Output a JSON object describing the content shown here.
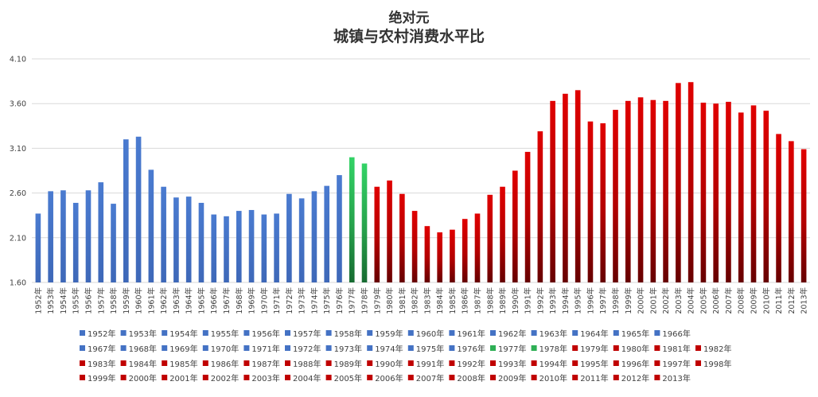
{
  "chart_data": {
    "type": "bar",
    "title": "绝对元",
    "subtitle": "城镇与农村消费水平比",
    "xlabel": "",
    "ylabel": "",
    "ylim": [
      1.6,
      4.1
    ],
    "yticks": [
      "1.60",
      "2.10",
      "2.60",
      "3.10",
      "3.60",
      "4.10"
    ],
    "grid": true,
    "legend_position": "bottom",
    "colors": {
      "1952-1976": "#4472C4",
      "1977-1978": "#2EAF55",
      "1979-2013": "#C00000"
    },
    "categories": [
      "1952年",
      "1953年",
      "1954年",
      "1955年",
      "1956年",
      "1957年",
      "1958年",
      "1959年",
      "1960年",
      "1961年",
      "1962年",
      "1963年",
      "1964年",
      "1965年",
      "1966年",
      "1967年",
      "1968年",
      "1969年",
      "1970年",
      "1971年",
      "1972年",
      "1973年",
      "1974年",
      "1975年",
      "1976年",
      "1977年",
      "1978年",
      "1979年",
      "1980年",
      "1981年",
      "1982年",
      "1983年",
      "1984年",
      "1985年",
      "1986年",
      "1987年",
      "1988年",
      "1989年",
      "1990年",
      "1991年",
      "1992年",
      "1993年",
      "1994年",
      "1995年",
      "1996年",
      "1997年",
      "1998年",
      "1999年",
      "2000年",
      "2001年",
      "2002年",
      "2003年",
      "2004年",
      "2005年",
      "2006年",
      "2007年",
      "2008年",
      "2009年",
      "2010年",
      "2011年",
      "2012年",
      "2013年"
    ],
    "values": [
      2.37,
      2.62,
      2.63,
      2.49,
      2.63,
      2.72,
      2.48,
      3.2,
      3.23,
      2.86,
      2.67,
      2.55,
      2.56,
      2.49,
      2.36,
      2.34,
      2.4,
      2.41,
      2.36,
      2.37,
      2.59,
      2.54,
      2.62,
      2.68,
      2.8,
      3.0,
      2.93,
      2.67,
      2.74,
      2.59,
      2.4,
      2.23,
      2.16,
      2.19,
      2.31,
      2.37,
      2.58,
      2.67,
      2.85,
      3.06,
      3.29,
      3.63,
      3.71,
      3.75,
      3.4,
      3.38,
      3.53,
      3.63,
      3.67,
      3.64,
      3.63,
      3.83,
      3.84,
      3.61,
      3.6,
      3.62,
      3.5,
      3.58,
      3.52,
      3.26,
      3.18,
      3.09
    ]
  }
}
